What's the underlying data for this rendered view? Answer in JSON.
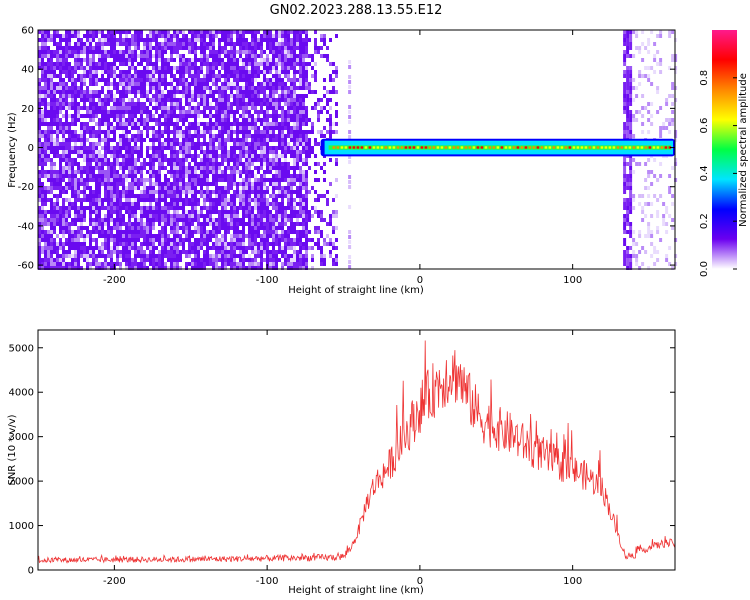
{
  "title": "GN02.2023.288.13.55.E12",
  "chart_data": [
    {
      "type": "heatmap",
      "xlabel": "Height of straight line (km)",
      "ylabel": "Frequency (Hz)",
      "xlim": [
        -250,
        167
      ],
      "ylim": [
        -62,
        60
      ],
      "xticks": [
        -200,
        -100,
        0,
        100
      ],
      "yticks": [
        -60,
        -40,
        -20,
        0,
        20,
        40,
        60
      ],
      "noise_region_x": [
        -250,
        -55
      ],
      "noise_column_x": [
        133,
        167
      ],
      "signal_band": {
        "x_start": -65,
        "x_end": 167,
        "center_hz": 0,
        "half_width_hz": 4
      },
      "colorbar": {
        "label": "Normalized spectral amplitude",
        "range": [
          0,
          1
        ],
        "ticks": [
          0.0,
          0.2,
          0.4,
          0.6,
          0.8
        ],
        "colormap": [
          "#ffffff",
          "#6b00f0",
          "#0000ff",
          "#00e5ff",
          "#00ff44",
          "#ffff00",
          "#ff8800",
          "#ff0000",
          "#ff1a8c"
        ]
      }
    },
    {
      "type": "line",
      "xlabel": "Height of straight line (km)",
      "ylabel": "SNR (10 * v/v)",
      "xlim": [
        -250,
        167
      ],
      "ylim": [
        0,
        5400
      ],
      "xticks": [
        -200,
        -100,
        0,
        100
      ],
      "yticks": [
        0,
        1000,
        2000,
        3000,
        4000,
        5000
      ],
      "color": "#ee3333",
      "series": [
        {
          "x": [
            -250,
            -200,
            -150,
            -100,
            -60,
            -50,
            -45,
            -40,
            -35,
            -30,
            -20,
            -10,
            0,
            10,
            20,
            25,
            30,
            40,
            50,
            60,
            70,
            80,
            90,
            100,
            110,
            120,
            125,
            130,
            135,
            140,
            150,
            160,
            167
          ],
          "values": [
            220,
            230,
            240,
            260,
            280,
            300,
            500,
            900,
            1500,
            1900,
            2350,
            3000,
            3650,
            4100,
            4450,
            4400,
            4000,
            3400,
            3200,
            3050,
            2800,
            2600,
            2400,
            2250,
            2100,
            1800,
            1300,
            750,
            300,
            350,
            500,
            600,
            600
          ]
        }
      ]
    }
  ]
}
